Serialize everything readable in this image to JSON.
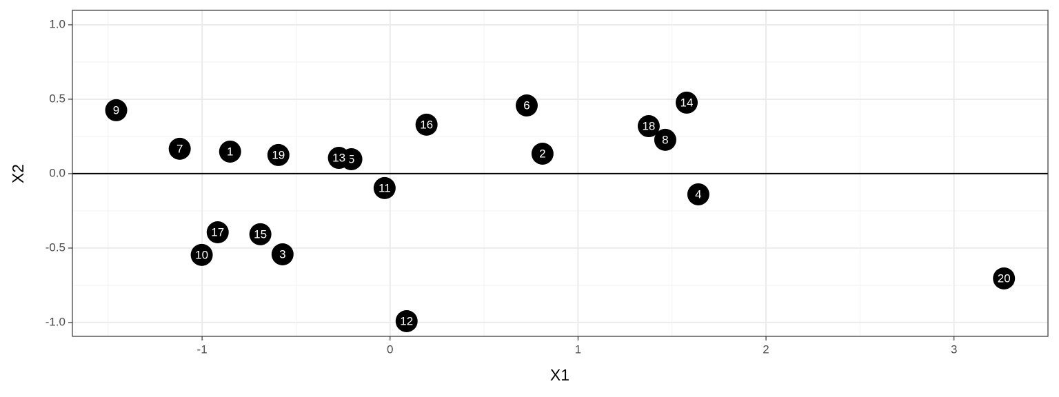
{
  "chart_data": {
    "type": "scatter",
    "x_label": "X1",
    "y_label": "X2",
    "labels": [
      "1",
      "2",
      "3",
      "4",
      "5",
      "6",
      "7",
      "8",
      "9",
      "10",
      "11",
      "12",
      "13",
      "14",
      "15",
      "16",
      "17",
      "18",
      "19",
      "20"
    ],
    "x": [
      -0.851,
      0.811,
      -0.572,
      1.64,
      -0.206,
      0.727,
      -1.119,
      1.464,
      -1.457,
      -1.002,
      -0.029,
      0.088,
      -0.272,
      1.578,
      -0.69,
      0.194,
      -0.917,
      1.376,
      -0.594,
      3.266
    ],
    "values": [
      0.148,
      0.134,
      -0.542,
      -0.139,
      0.097,
      0.458,
      0.167,
      0.227,
      0.426,
      -0.546,
      -0.097,
      -0.991,
      0.106,
      0.477,
      -0.407,
      0.329,
      -0.394,
      0.319,
      0.125,
      -0.704
    ],
    "color": "#000000",
    "label_color": "#ffffff",
    "xlim": [
      -1.69,
      3.5
    ],
    "ylim": [
      -1.093,
      1.097
    ],
    "xticks": [
      -1,
      0,
      1,
      2,
      3
    ],
    "yticks": [
      {
        "value": -1,
        "label": "-1.0"
      },
      {
        "value": -0.5,
        "label": "-0.5"
      },
      {
        "value": 0,
        "label": "0.0"
      },
      {
        "value": 0.5,
        "label": "0.5"
      },
      {
        "value": 1,
        "label": "1.0"
      }
    ],
    "x_minor_grid": [
      -1.5,
      -0.5,
      0.5,
      1.5,
      2.5
    ],
    "y_minor_grid": [
      -0.75,
      -0.25,
      0.25,
      0.75
    ],
    "hline": 0,
    "grid": true
  }
}
